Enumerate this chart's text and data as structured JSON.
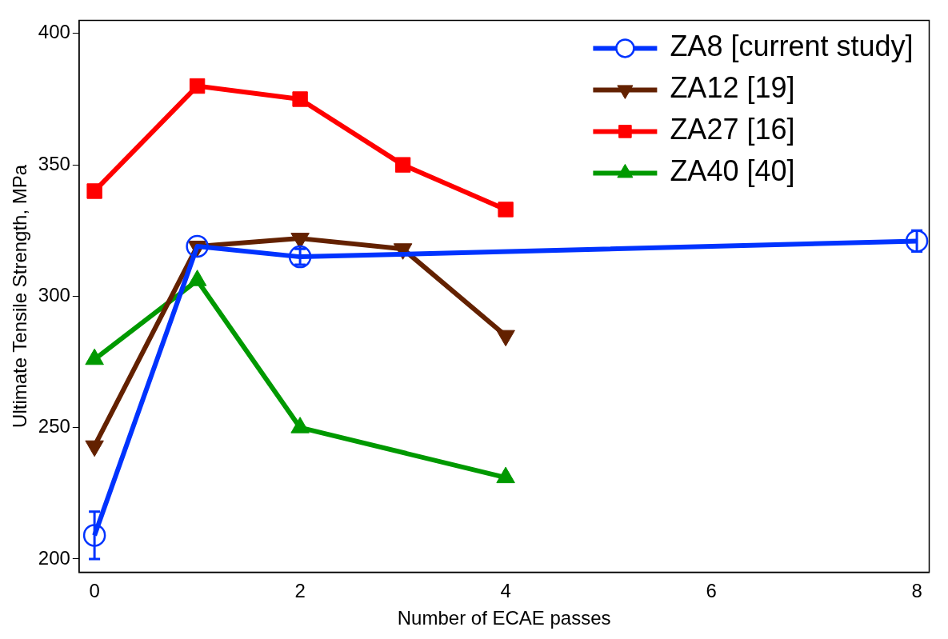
{
  "chart_data": {
    "type": "line",
    "xlabel": "Number of ECAE passes",
    "ylabel": "Ultimate Tensile Strength, MPa",
    "xlim": [
      -0.15,
      8.12
    ],
    "xticks": [
      0,
      2,
      4,
      6,
      8
    ],
    "ylim": [
      195,
      405
    ],
    "yticks": [
      200,
      250,
      300,
      350,
      400
    ],
    "grid": false,
    "legend": "top right",
    "line_style": "solid",
    "series": [
      {
        "name": "ZA8 [current study]",
        "color": "#0033ff",
        "marker": "circle",
        "x": [
          0,
          1,
          2,
          8
        ],
        "values": [
          209,
          319,
          315,
          321
        ],
        "errors": [
          9,
          null,
          3,
          4
        ]
      },
      {
        "name": "ZA12 [19]",
        "color": "#632100",
        "marker": "triangle-down",
        "x": [
          0,
          1,
          2,
          3,
          4
        ],
        "values": [
          243,
          319,
          322,
          318,
          285
        ]
      },
      {
        "name": "ZA27 [16]",
        "color": "#ff0000",
        "marker": "square",
        "x": [
          0,
          1,
          2,
          3,
          4
        ],
        "values": [
          340,
          380,
          375,
          350,
          333
        ]
      },
      {
        "name": "ZA40 [40]",
        "color": "#009900",
        "marker": "triangle",
        "x": [
          0,
          1,
          2,
          4
        ],
        "values": [
          276,
          306,
          250,
          231
        ]
      }
    ]
  }
}
